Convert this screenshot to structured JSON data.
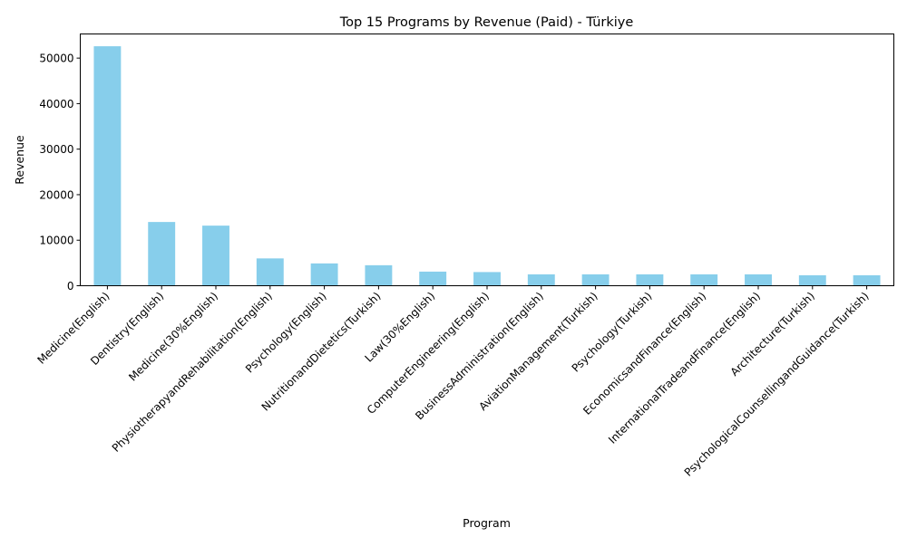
{
  "chart_data": {
    "type": "bar",
    "title": "Top 15 Programs by Revenue (Paid) - Türkiye",
    "xlabel": "Program",
    "ylabel": "Revenue",
    "ylim": [
      0,
      55300
    ],
    "yticks": [
      0,
      10000,
      20000,
      30000,
      40000,
      50000
    ],
    "grid": false,
    "legend": "none",
    "bar_color": "#87CEEB",
    "categories": [
      "Medicine(English)",
      "Dentistry(English)",
      "Medicine(30%English)",
      "PhysiotherapyandRehabilitation(English)",
      "Psychology(English)",
      "NutritionandDietetics(Turkish)",
      "Law(30%English)",
      "ComputerEngineering(English)",
      "BusinessAdministration(English)",
      "AviationManagement(Turkish)",
      "Psychology(Turkish)",
      "EconomicsandFinance(English)",
      "InternationalTradeandFinance(English)",
      "Architecture(Turkish)",
      "PsychologicalCounsellingandGuidance(Turkish)"
    ],
    "values": [
      52600,
      14000,
      13200,
      6000,
      4900,
      4500,
      3100,
      3000,
      2500,
      2500,
      2500,
      2500,
      2500,
      2300,
      2300
    ]
  }
}
